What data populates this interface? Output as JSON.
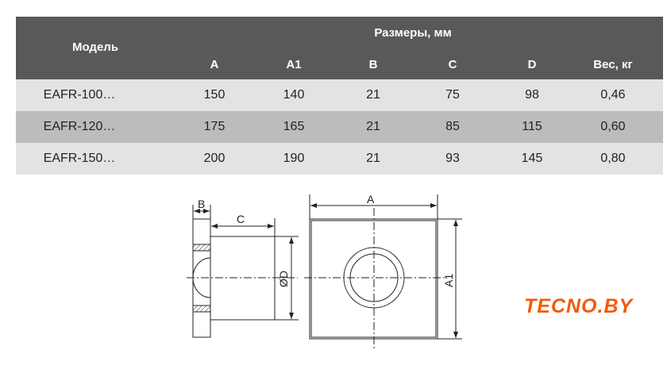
{
  "table": {
    "header": {
      "model": "Модель",
      "group": "Размеры, мм",
      "cols": [
        "A",
        "A1",
        "B",
        "C",
        "D",
        "Вес, кг"
      ]
    },
    "rows": [
      {
        "model": "EAFR-100…",
        "values": [
          "150",
          "140",
          "21",
          "75",
          "98",
          "0,46"
        ]
      },
      {
        "model": "EAFR-120…",
        "values": [
          "175",
          "165",
          "21",
          "85",
          "115",
          "0,60"
        ]
      },
      {
        "model": "EAFR-150…",
        "values": [
          "200",
          "190",
          "21",
          "93",
          "145",
          "0,80"
        ]
      }
    ]
  },
  "drawing": {
    "labels": {
      "b": "B",
      "c": "C",
      "d": "ØD",
      "a": "A",
      "a1": "A1"
    }
  },
  "logo": {
    "text": "TECNO.BY",
    "color": "#f15a0c"
  }
}
